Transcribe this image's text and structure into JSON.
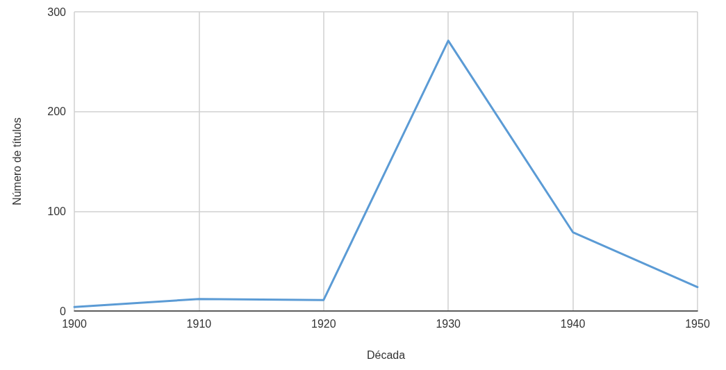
{
  "chart_data": {
    "type": "line",
    "xlabel": "Década",
    "ylabel": "Número de títulos",
    "x": [
      1900,
      1910,
      1920,
      1930,
      1940,
      1950
    ],
    "series": [
      {
        "color": "#5b9bd5",
        "values": [
          4,
          12,
          11,
          271,
          79,
          24
        ]
      }
    ],
    "xlim": [
      1900,
      1950
    ],
    "xticks": [
      1900,
      1910,
      1920,
      1930,
      1940,
      1950
    ],
    "ylim": [
      0,
      300
    ],
    "yticks": [
      0,
      100,
      200,
      300
    ],
    "grid": true,
    "marker": "none",
    "line_style": "solid"
  }
}
